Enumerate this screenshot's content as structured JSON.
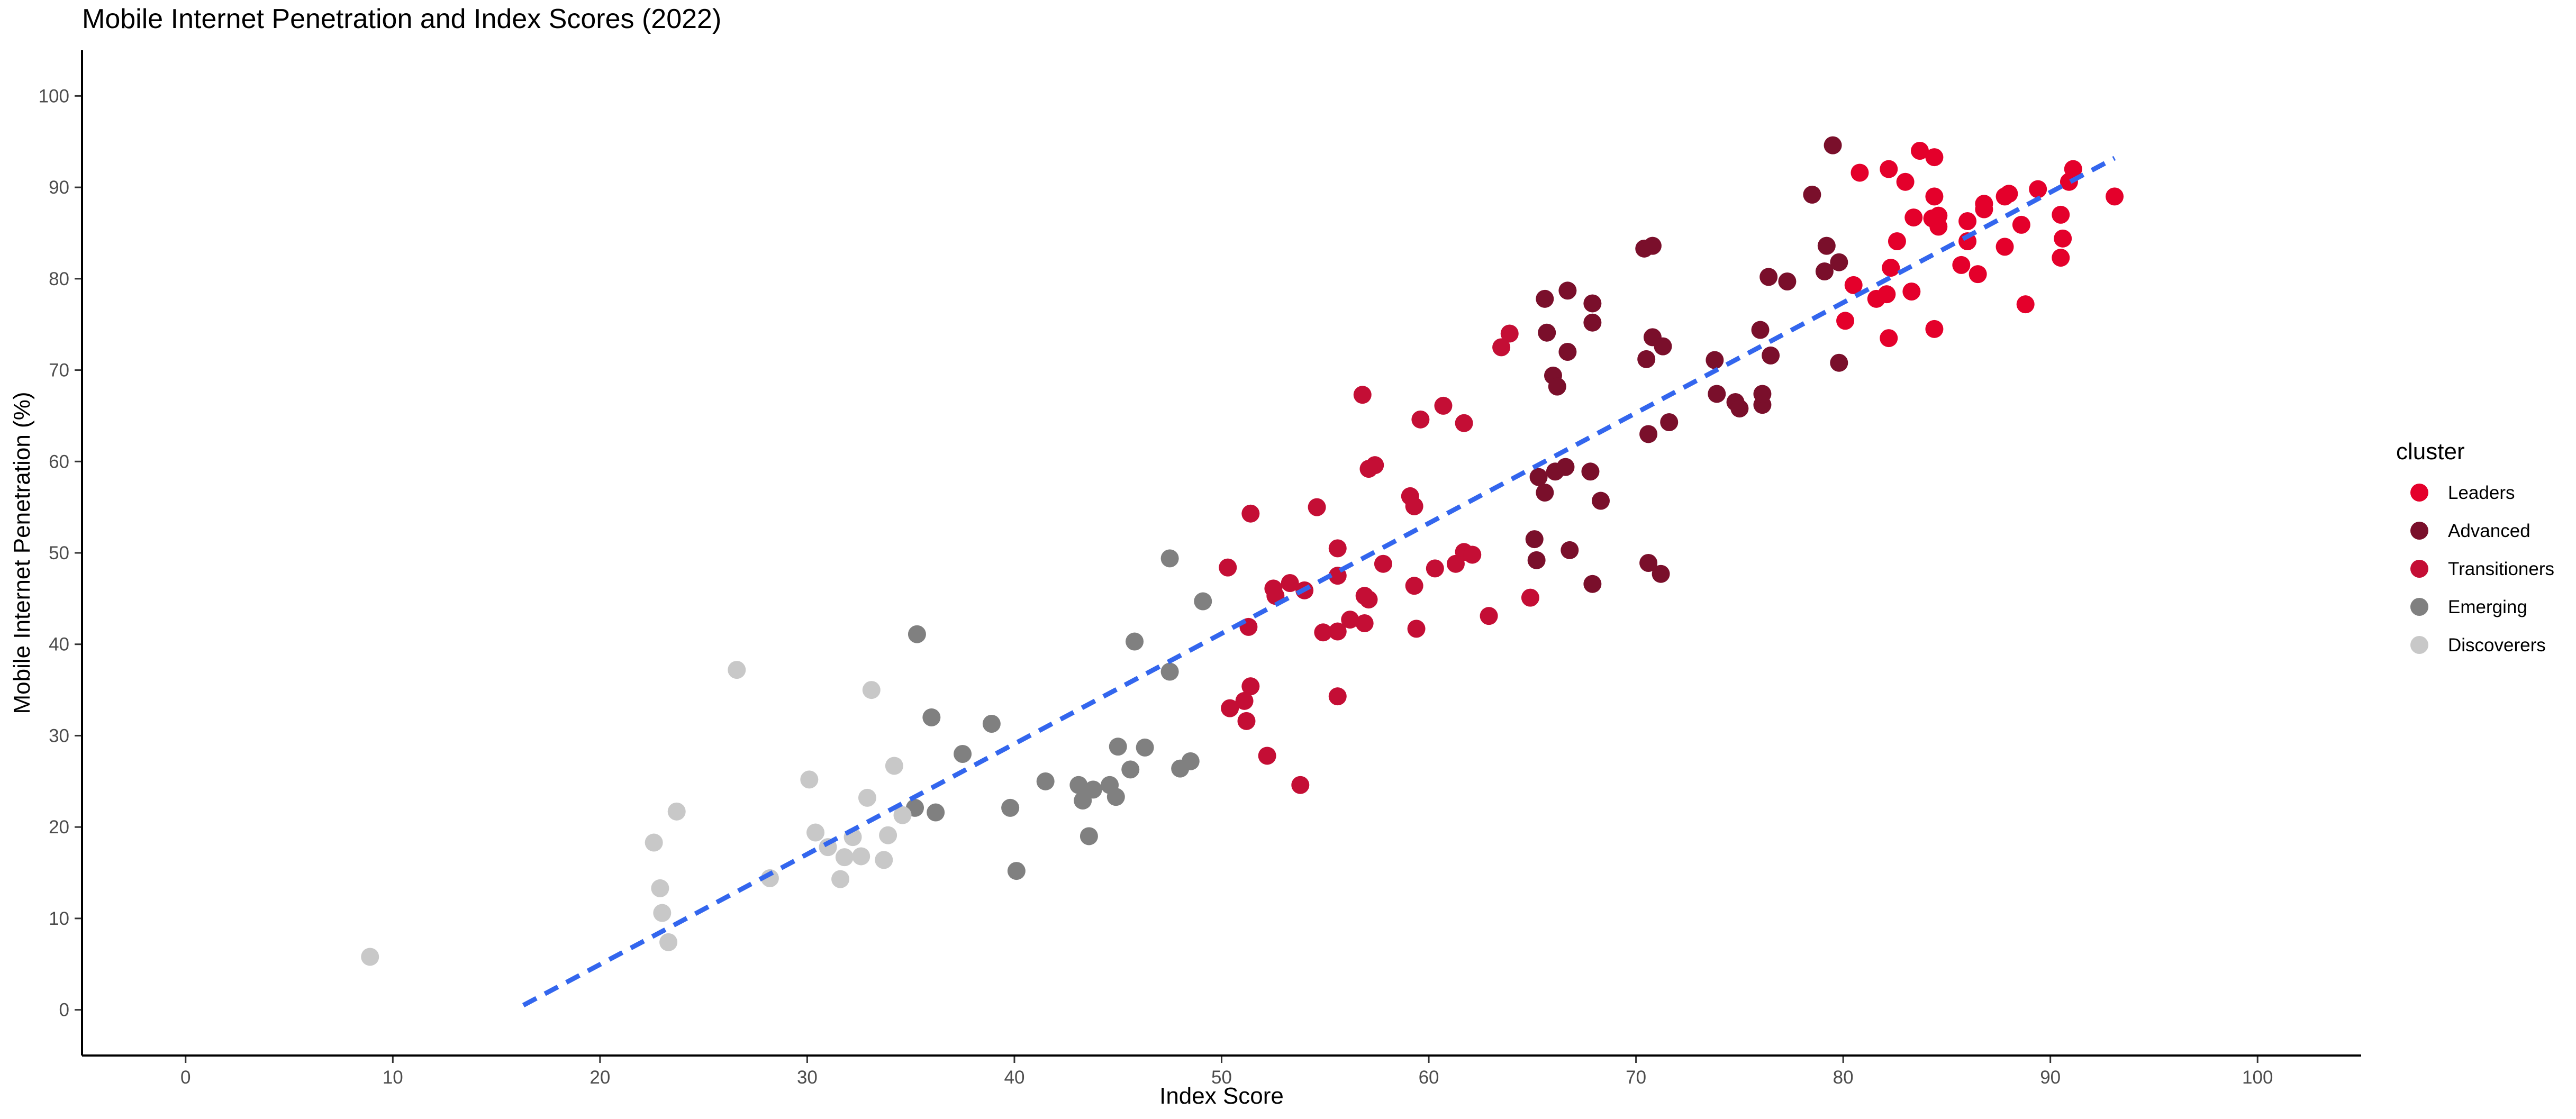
{
  "chart_data": {
    "type": "scatter",
    "title": "Mobile Internet Penetration and Index Scores (2022)",
    "xlabel": "Index Score",
    "ylabel": "Mobile Internet Penetration (%)",
    "xlim": [
      -5,
      105
    ],
    "ylim": [
      -5,
      105
    ],
    "xticks": [
      0,
      10,
      20,
      30,
      40,
      50,
      60,
      70,
      80,
      90,
      100
    ],
    "yticks": [
      0,
      10,
      20,
      30,
      40,
      50,
      60,
      70,
      80,
      90,
      100
    ],
    "grid": false,
    "legend": {
      "title": "cluster",
      "position": "right"
    },
    "trendline": {
      "style": "dashed",
      "color": "#3366ee",
      "x": [
        16.3,
        93.1
      ],
      "y": [
        0.5,
        93.2
      ]
    },
    "series": [
      {
        "name": "Leaders",
        "color": "#e4002b",
        "points": [
          [
            80.8,
            91.6
          ],
          [
            82.2,
            92.0
          ],
          [
            83.0,
            90.6
          ],
          [
            83.7,
            94.0
          ],
          [
            84.4,
            93.3
          ],
          [
            84.4,
            89.0
          ],
          [
            86.8,
            88.2
          ],
          [
            87.8,
            89.0
          ],
          [
            88.0,
            89.3
          ],
          [
            89.4,
            89.8
          ],
          [
            91.1,
            92.0
          ],
          [
            90.9,
            90.6
          ],
          [
            93.1,
            89.0
          ],
          [
            83.4,
            86.7
          ],
          [
            84.3,
            86.6
          ],
          [
            84.6,
            86.9
          ],
          [
            84.6,
            85.7
          ],
          [
            86.0,
            86.3
          ],
          [
            86.8,
            87.6
          ],
          [
            88.6,
            85.9
          ],
          [
            90.5,
            87.0
          ],
          [
            82.6,
            84.1
          ],
          [
            83.3,
            78.6
          ],
          [
            85.7,
            81.5
          ],
          [
            86.0,
            84.1
          ],
          [
            86.5,
            80.5
          ],
          [
            87.8,
            83.5
          ],
          [
            90.6,
            84.4
          ],
          [
            90.5,
            82.3
          ],
          [
            80.5,
            79.3
          ],
          [
            81.6,
            77.8
          ],
          [
            82.1,
            78.3
          ],
          [
            82.3,
            81.2
          ],
          [
            88.8,
            77.2
          ],
          [
            80.1,
            75.4
          ],
          [
            82.2,
            73.5
          ],
          [
            84.4,
            74.5
          ]
        ]
      },
      {
        "name": "Advanced",
        "color": "#7a0f2b",
        "points": [
          [
            79.5,
            94.6
          ],
          [
            78.5,
            89.2
          ],
          [
            79.2,
            83.6
          ],
          [
            79.1,
            80.8
          ],
          [
            79.8,
            81.8
          ],
          [
            79.8,
            70.8
          ],
          [
            76.4,
            80.2
          ],
          [
            77.3,
            79.7
          ],
          [
            70.4,
            83.3
          ],
          [
            70.8,
            83.6
          ],
          [
            66.7,
            78.7
          ],
          [
            67.9,
            77.3
          ],
          [
            67.9,
            75.2
          ],
          [
            65.6,
            77.8
          ],
          [
            65.7,
            74.1
          ],
          [
            66.7,
            72.0
          ],
          [
            70.5,
            71.2
          ],
          [
            70.8,
            73.6
          ],
          [
            71.3,
            72.6
          ],
          [
            73.8,
            71.1
          ],
          [
            76.5,
            71.6
          ],
          [
            76.0,
            74.4
          ],
          [
            66.0,
            69.4
          ],
          [
            66.2,
            68.2
          ],
          [
            73.9,
            67.4
          ],
          [
            74.8,
            66.5
          ],
          [
            75.0,
            65.8
          ],
          [
            76.1,
            66.2
          ],
          [
            76.1,
            67.4
          ],
          [
            70.6,
            63.0
          ],
          [
            71.6,
            64.3
          ],
          [
            65.3,
            58.3
          ],
          [
            65.6,
            56.6
          ],
          [
            66.1,
            58.9
          ],
          [
            66.6,
            59.4
          ],
          [
            67.8,
            58.9
          ],
          [
            68.3,
            55.7
          ],
          [
            65.1,
            51.5
          ],
          [
            65.2,
            49.2
          ],
          [
            66.8,
            50.3
          ],
          [
            67.9,
            46.6
          ],
          [
            70.6,
            48.9
          ],
          [
            71.2,
            47.7
          ]
        ]
      },
      {
        "name": "Transitioners",
        "color": "#c40e35",
        "points": [
          [
            63.5,
            72.5
          ],
          [
            63.9,
            74.0
          ],
          [
            56.8,
            67.3
          ],
          [
            60.7,
            66.1
          ],
          [
            59.6,
            64.6
          ],
          [
            61.7,
            64.2
          ],
          [
            57.4,
            59.6
          ],
          [
            57.1,
            59.2
          ],
          [
            59.1,
            56.2
          ],
          [
            59.3,
            55.1
          ],
          [
            51.4,
            54.3
          ],
          [
            54.6,
            55.0
          ],
          [
            55.6,
            50.5
          ],
          [
            61.7,
            50.1
          ],
          [
            62.1,
            49.8
          ],
          [
            61.3,
            48.8
          ],
          [
            60.3,
            48.3
          ],
          [
            57.8,
            48.8
          ],
          [
            55.6,
            47.5
          ],
          [
            50.3,
            48.4
          ],
          [
            52.5,
            46.1
          ],
          [
            52.6,
            45.3
          ],
          [
            53.3,
            46.7
          ],
          [
            54.0,
            45.9
          ],
          [
            56.9,
            45.3
          ],
          [
            57.1,
            44.9
          ],
          [
            59.3,
            46.4
          ],
          [
            62.9,
            43.1
          ],
          [
            64.9,
            45.1
          ],
          [
            56.2,
            42.7
          ],
          [
            56.9,
            42.3
          ],
          [
            54.9,
            41.3
          ],
          [
            55.6,
            41.4
          ],
          [
            59.4,
            41.7
          ],
          [
            51.3,
            41.9
          ],
          [
            51.4,
            35.4
          ],
          [
            51.1,
            33.8
          ],
          [
            50.4,
            33.0
          ],
          [
            51.2,
            31.6
          ],
          [
            55.6,
            34.3
          ],
          [
            52.2,
            27.8
          ],
          [
            53.8,
            24.6
          ]
        ]
      },
      {
        "name": "Emerging",
        "color": "#808080",
        "points": [
          [
            47.5,
            49.4
          ],
          [
            49.1,
            44.7
          ],
          [
            45.8,
            40.3
          ],
          [
            47.5,
            37.0
          ],
          [
            35.3,
            41.1
          ],
          [
            36.0,
            32.0
          ],
          [
            38.9,
            31.3
          ],
          [
            37.5,
            28.0
          ],
          [
            45.0,
            28.8
          ],
          [
            46.3,
            28.7
          ],
          [
            48.5,
            27.2
          ],
          [
            48.0,
            26.4
          ],
          [
            45.6,
            26.3
          ],
          [
            41.5,
            25.0
          ],
          [
            43.1,
            24.6
          ],
          [
            44.6,
            24.6
          ],
          [
            43.8,
            24.1
          ],
          [
            43.3,
            22.9
          ],
          [
            44.9,
            23.3
          ],
          [
            39.8,
            22.1
          ],
          [
            35.2,
            22.1
          ],
          [
            36.2,
            21.6
          ],
          [
            43.6,
            19.0
          ],
          [
            40.1,
            15.2
          ]
        ]
      },
      {
        "name": "Discoverers",
        "color": "#c8c8c8",
        "points": [
          [
            26.6,
            37.2
          ],
          [
            33.1,
            35.0
          ],
          [
            34.2,
            26.7
          ],
          [
            30.1,
            25.2
          ],
          [
            32.9,
            23.2
          ],
          [
            23.7,
            21.7
          ],
          [
            34.6,
            21.3
          ],
          [
            30.4,
            19.4
          ],
          [
            33.9,
            19.1
          ],
          [
            32.2,
            18.9
          ],
          [
            31.0,
            17.8
          ],
          [
            31.8,
            16.7
          ],
          [
            32.6,
            16.8
          ],
          [
            33.7,
            16.4
          ],
          [
            22.6,
            18.3
          ],
          [
            28.2,
            14.4
          ],
          [
            31.6,
            14.3
          ],
          [
            22.9,
            13.3
          ],
          [
            23.0,
            10.6
          ],
          [
            23.3,
            7.4
          ],
          [
            8.9,
            5.8
          ]
        ]
      }
    ]
  }
}
